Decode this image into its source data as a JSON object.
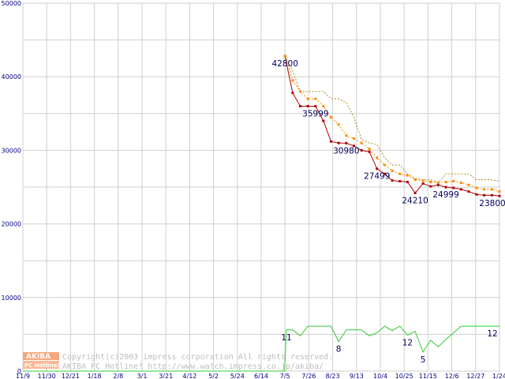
{
  "chart_data": {
    "type": "line",
    "title": "",
    "xlabel": "",
    "ylabel": "",
    "ylim": [
      0,
      50000
    ],
    "y_ticks": [
      0,
      10000,
      20000,
      30000,
      40000,
      50000
    ],
    "grid": true,
    "x_tick_labels": [
      "11/9",
      "11/30",
      "12/21",
      "1/18",
      "2/8",
      "3/1",
      "3/21",
      "4/12",
      "5/2",
      "5/24",
      "6/14",
      "7/5",
      "7/26",
      "8/23",
      "9/13",
      "10/4",
      "10/25",
      "11/15",
      "12/6",
      "12/27",
      "1/24"
    ],
    "series": [
      {
        "key": "min",
        "color": "#b00000",
        "style": "solid-markers",
        "points": [
          [
            11.0,
            42800
          ],
          [
            11.32,
            37800
          ],
          [
            11.64,
            36000
          ],
          [
            11.96,
            36000
          ],
          [
            12.28,
            35999
          ],
          [
            12.61,
            34000
          ],
          [
            12.93,
            31200
          ],
          [
            13.25,
            31000
          ],
          [
            13.57,
            30980
          ],
          [
            13.89,
            30600
          ],
          [
            14.21,
            30000
          ],
          [
            14.54,
            29800
          ],
          [
            14.86,
            27499
          ],
          [
            15.18,
            26800
          ],
          [
            15.5,
            25900
          ],
          [
            15.82,
            25800
          ],
          [
            16.14,
            25700
          ],
          [
            16.46,
            24210
          ],
          [
            16.79,
            25500
          ],
          [
            17.11,
            25100
          ],
          [
            17.43,
            25300
          ],
          [
            17.75,
            24999
          ],
          [
            18.07,
            24900
          ],
          [
            18.39,
            24700
          ],
          [
            18.71,
            24400
          ],
          [
            19.04,
            24000
          ],
          [
            19.36,
            23900
          ],
          [
            19.68,
            23900
          ],
          [
            20.0,
            23800
          ]
        ]
      },
      {
        "key": "avg",
        "color": "#ff8c00",
        "style": "dotted-markers",
        "points": [
          [
            11.0,
            42800
          ],
          [
            11.32,
            39500
          ],
          [
            11.64,
            38000
          ],
          [
            11.96,
            37000
          ],
          [
            12.28,
            37000
          ],
          [
            12.61,
            36000
          ],
          [
            12.93,
            34500
          ],
          [
            13.25,
            33500
          ],
          [
            13.57,
            32000
          ],
          [
            13.89,
            31600
          ],
          [
            14.21,
            31000
          ],
          [
            14.54,
            30200
          ],
          [
            14.86,
            29000
          ],
          [
            15.18,
            28000
          ],
          [
            15.5,
            27200
          ],
          [
            15.82,
            26800
          ],
          [
            16.14,
            26600
          ],
          [
            16.46,
            26000
          ],
          [
            16.79,
            25900
          ],
          [
            17.11,
            25700
          ],
          [
            17.43,
            25600
          ],
          [
            17.75,
            25700
          ],
          [
            18.07,
            25800
          ],
          [
            18.39,
            25600
          ],
          [
            18.71,
            25300
          ],
          [
            19.04,
            24900
          ],
          [
            19.36,
            24700
          ],
          [
            19.68,
            24700
          ],
          [
            20.0,
            24400
          ]
        ]
      },
      {
        "key": "max",
        "color": "#a88a20",
        "style": "dotted",
        "points": [
          [
            11.0,
            42800
          ],
          [
            11.32,
            40800
          ],
          [
            11.64,
            38000
          ],
          [
            11.96,
            38000
          ],
          [
            12.28,
            38000
          ],
          [
            12.61,
            38000
          ],
          [
            12.93,
            37000
          ],
          [
            13.25,
            37000
          ],
          [
            13.57,
            36500
          ],
          [
            13.89,
            34500
          ],
          [
            14.21,
            31500
          ],
          [
            14.54,
            31000
          ],
          [
            14.86,
            30800
          ],
          [
            15.18,
            29000
          ],
          [
            15.5,
            28000
          ],
          [
            15.82,
            28000
          ],
          [
            16.14,
            26800
          ],
          [
            16.46,
            26200
          ],
          [
            16.79,
            26000
          ],
          [
            17.11,
            26000
          ],
          [
            17.43,
            25600
          ],
          [
            17.75,
            26800
          ],
          [
            18.07,
            26800
          ],
          [
            18.39,
            26800
          ],
          [
            18.71,
            26800
          ],
          [
            19.04,
            26000
          ],
          [
            19.36,
            26000
          ],
          [
            19.68,
            26000
          ],
          [
            20.0,
            25800
          ]
        ]
      },
      {
        "key": "shops",
        "color": "#33cc33",
        "style": "solid",
        "points": [
          [
            0.0,
            0
          ],
          [
            10.98,
            0
          ],
          [
            11.06,
            5600
          ],
          [
            11.32,
            5600
          ],
          [
            11.64,
            4800
          ],
          [
            11.96,
            6100
          ],
          [
            12.28,
            6100
          ],
          [
            12.61,
            6100
          ],
          [
            12.93,
            6100
          ],
          [
            13.25,
            4000
          ],
          [
            13.57,
            5600
          ],
          [
            13.89,
            5600
          ],
          [
            14.21,
            5600
          ],
          [
            14.54,
            4800
          ],
          [
            14.86,
            5200
          ],
          [
            15.18,
            6100
          ],
          [
            15.5,
            5500
          ],
          [
            15.82,
            6100
          ],
          [
            16.14,
            4900
          ],
          [
            16.46,
            5400
          ],
          [
            16.79,
            2600
          ],
          [
            17.11,
            4200
          ],
          [
            17.43,
            3300
          ],
          [
            17.75,
            4300
          ],
          [
            18.07,
            5200
          ],
          [
            18.39,
            6100
          ],
          [
            18.71,
            6100
          ],
          [
            19.04,
            6100
          ],
          [
            19.36,
            6100
          ],
          [
            20.0,
            6100
          ]
        ]
      }
    ],
    "data_labels": [
      {
        "text": "42800",
        "x": 11.0,
        "y": 42800
      },
      {
        "text": "35999",
        "x": 12.28,
        "y": 35999
      },
      {
        "text": "30980",
        "x": 13.57,
        "y": 30980
      },
      {
        "text": "27499",
        "x": 14.86,
        "y": 27499
      },
      {
        "text": "24210",
        "x": 16.46,
        "y": 24210
      },
      {
        "text": "24999",
        "x": 17.75,
        "y": 24999
      },
      {
        "text": "23800",
        "x": 20.0,
        "y": 23800
      },
      {
        "text": "11",
        "x": 11.06,
        "y": 5600
      },
      {
        "text": "8",
        "x": 13.25,
        "y": 4000
      },
      {
        "text": "12",
        "x": 16.14,
        "y": 4900
      },
      {
        "text": "5",
        "x": 16.79,
        "y": 2600
      },
      {
        "text": "12",
        "x": 20.0,
        "y": 6100
      }
    ]
  },
  "watermark": {
    "badge_top": "AKIBA",
    "badge_bottom": "PC Hotline!",
    "line1": "Copyright(c)2003 impress corporation All rights reserved.",
    "line2": "AKIBA PC Hotline! http://www.watch.impress.co.jp/akiba/"
  }
}
